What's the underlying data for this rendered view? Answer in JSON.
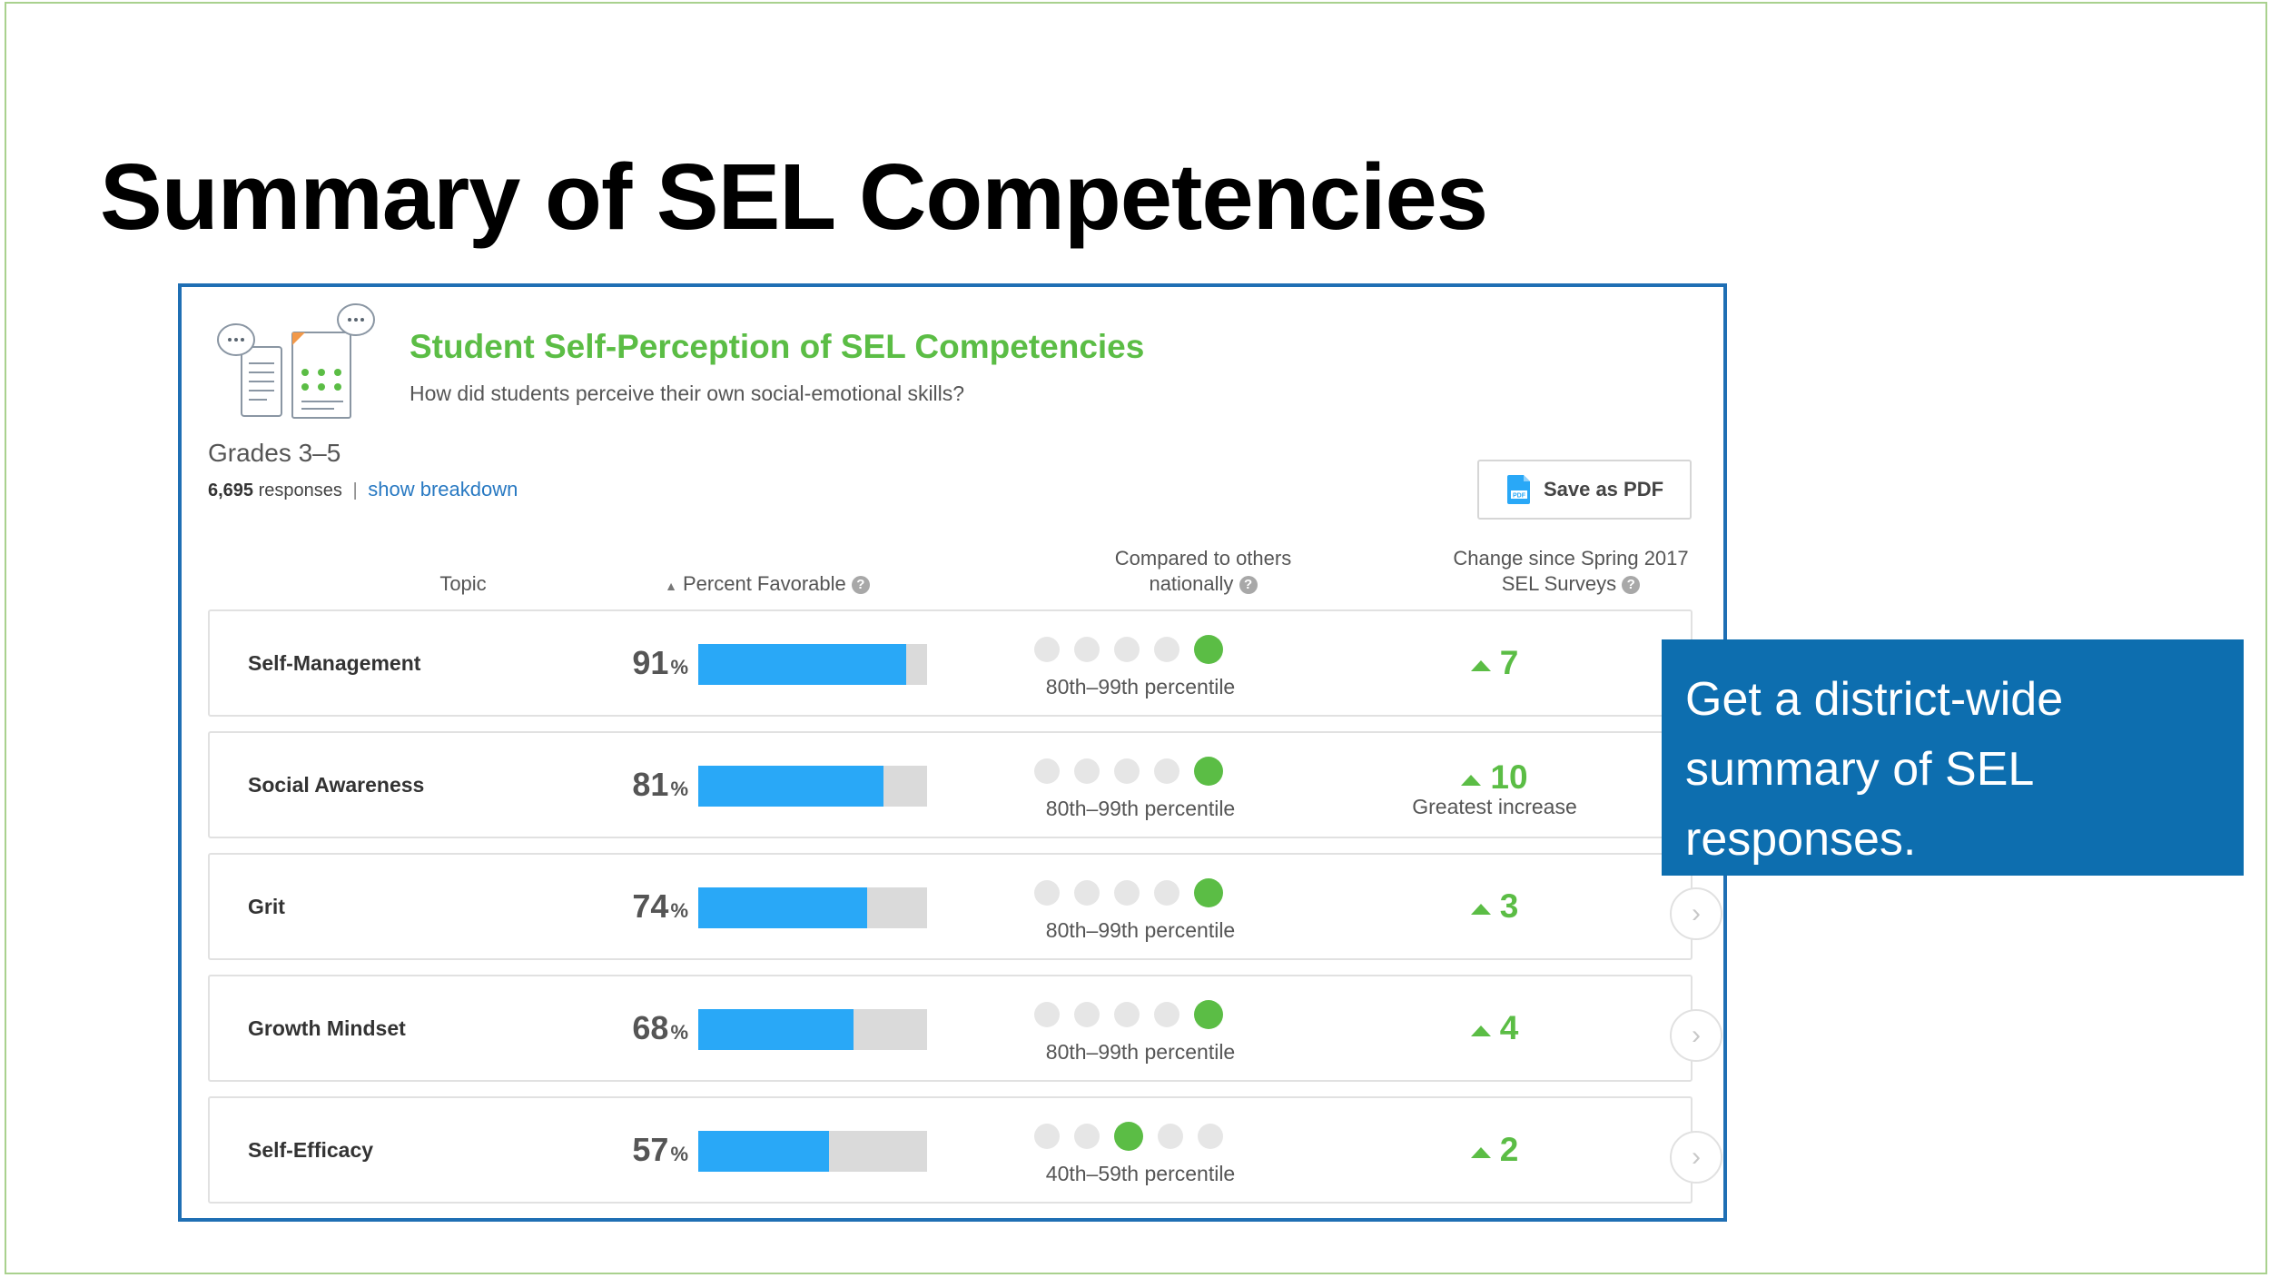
{
  "slide": {
    "title": "Summary of SEL Competencies"
  },
  "panel": {
    "title": "Student Self-Perception of SEL Competencies",
    "subtitle": "How did students perceive their own social-emotional skills?",
    "grades": "Grades 3–5",
    "response_count": "6,695",
    "responses_label": "responses",
    "separator": "|",
    "breakdown_link": "show breakdown",
    "save_pdf_label": "Save as PDF"
  },
  "columns": {
    "topic": "Topic",
    "percent_favorable": "Percent Favorable",
    "compared_line1": "Compared to others",
    "compared_line2": "nationally",
    "change_line1": "Change since Spring 2017",
    "change_line2": "SEL Surveys"
  },
  "rows": [
    {
      "topic": "Self-Management",
      "percent": "91",
      "percent_value": 0.91,
      "dot_level": 5,
      "percentile": "80th–99th percentile",
      "change": "7",
      "note": ""
    },
    {
      "topic": "Social Awareness",
      "percent": "81",
      "percent_value": 0.81,
      "dot_level": 5,
      "percentile": "80th–99th percentile",
      "change": "10",
      "note": "Greatest increase"
    },
    {
      "topic": "Grit",
      "percent": "74",
      "percent_value": 0.74,
      "dot_level": 5,
      "percentile": "80th–99th percentile",
      "change": "3",
      "note": ""
    },
    {
      "topic": "Growth Mindset",
      "percent": "68",
      "percent_value": 0.68,
      "dot_level": 5,
      "percentile": "80th–99th percentile",
      "change": "4",
      "note": ""
    },
    {
      "topic": "Self-Efficacy",
      "percent": "57",
      "percent_value": 0.57,
      "dot_level": 3,
      "percentile": "40th–59th percentile",
      "change": "2",
      "note": ""
    }
  ],
  "percent_sign": "%",
  "callout": {
    "text": "Get a district-wide summary of SEL responses."
  },
  "colors": {
    "accent_green": "#5bbd45",
    "bar_blue": "#29a8f7",
    "panel_border": "#1f6fb4",
    "callout_bg": "#0d6eaf",
    "link_blue": "#2879c2"
  },
  "icons": {
    "header_illustration": "survey-chat-illustration",
    "pdf": "pdf-file-icon",
    "sort": "sort-icon",
    "help": "help-icon",
    "increase": "up-triangle-icon",
    "chevron": "chevron-right-icon"
  }
}
